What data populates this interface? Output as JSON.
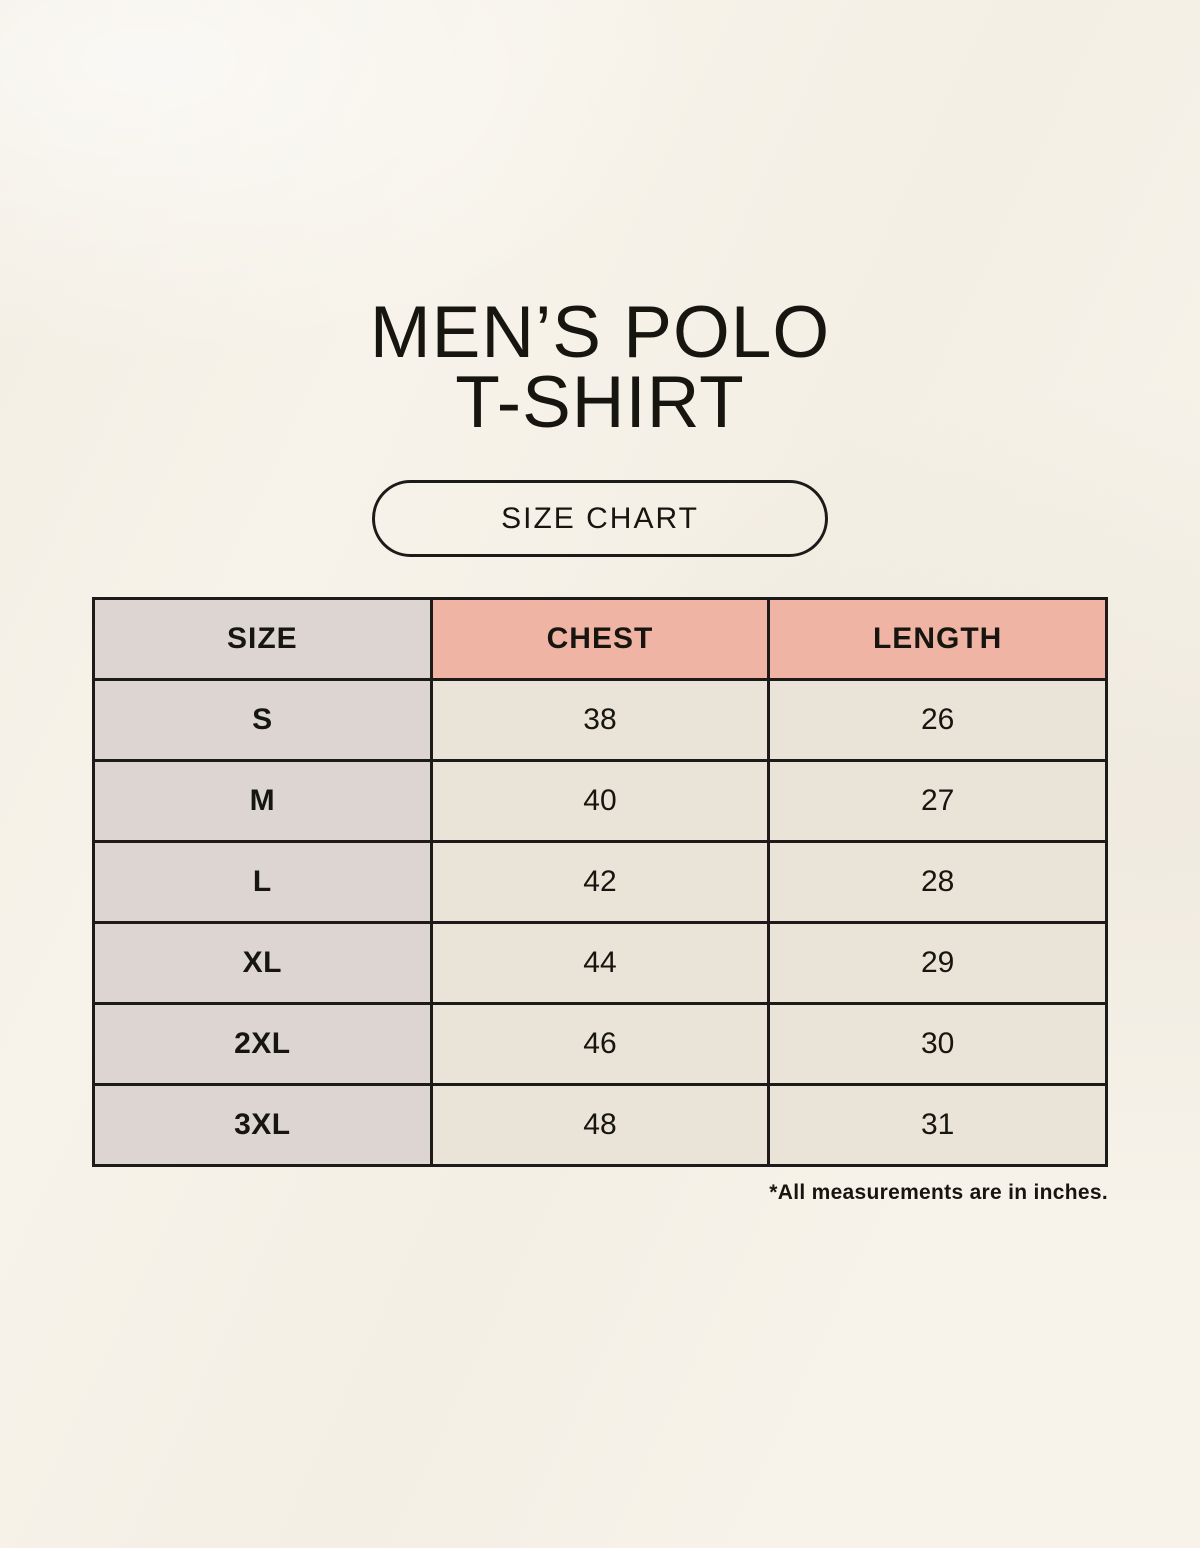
{
  "header": {
    "title_line1": "MEN’S POLO",
    "title_line2": "T-SHIRT",
    "badge_label": "SIZE CHART"
  },
  "chart_data": {
    "type": "table",
    "title": "MEN’S POLO T-SHIRT — SIZE CHART",
    "columns": [
      "SIZE",
      "CHEST",
      "LENGTH"
    ],
    "rows": [
      {
        "size": "S",
        "chest": "38",
        "length": "26"
      },
      {
        "size": "M",
        "chest": "40",
        "length": "27"
      },
      {
        "size": "L",
        "chest": "42",
        "length": "28"
      },
      {
        "size": "XL",
        "chest": "44",
        "length": "29"
      },
      {
        "size": "2XL",
        "chest": "46",
        "length": "30"
      },
      {
        "size": "3XL",
        "chest": "48",
        "length": "31"
      }
    ],
    "units": "inches"
  },
  "footnote": {
    "text": "*All measurements are in inches."
  },
  "colors": {
    "page_bg": "#f7f3ea",
    "accent_salmon": "#f0b4a4",
    "size_col_bg": "#dcd5d1",
    "cell_bg": "#eae3d8",
    "line": "#1d1b19",
    "text": "#17150f"
  }
}
